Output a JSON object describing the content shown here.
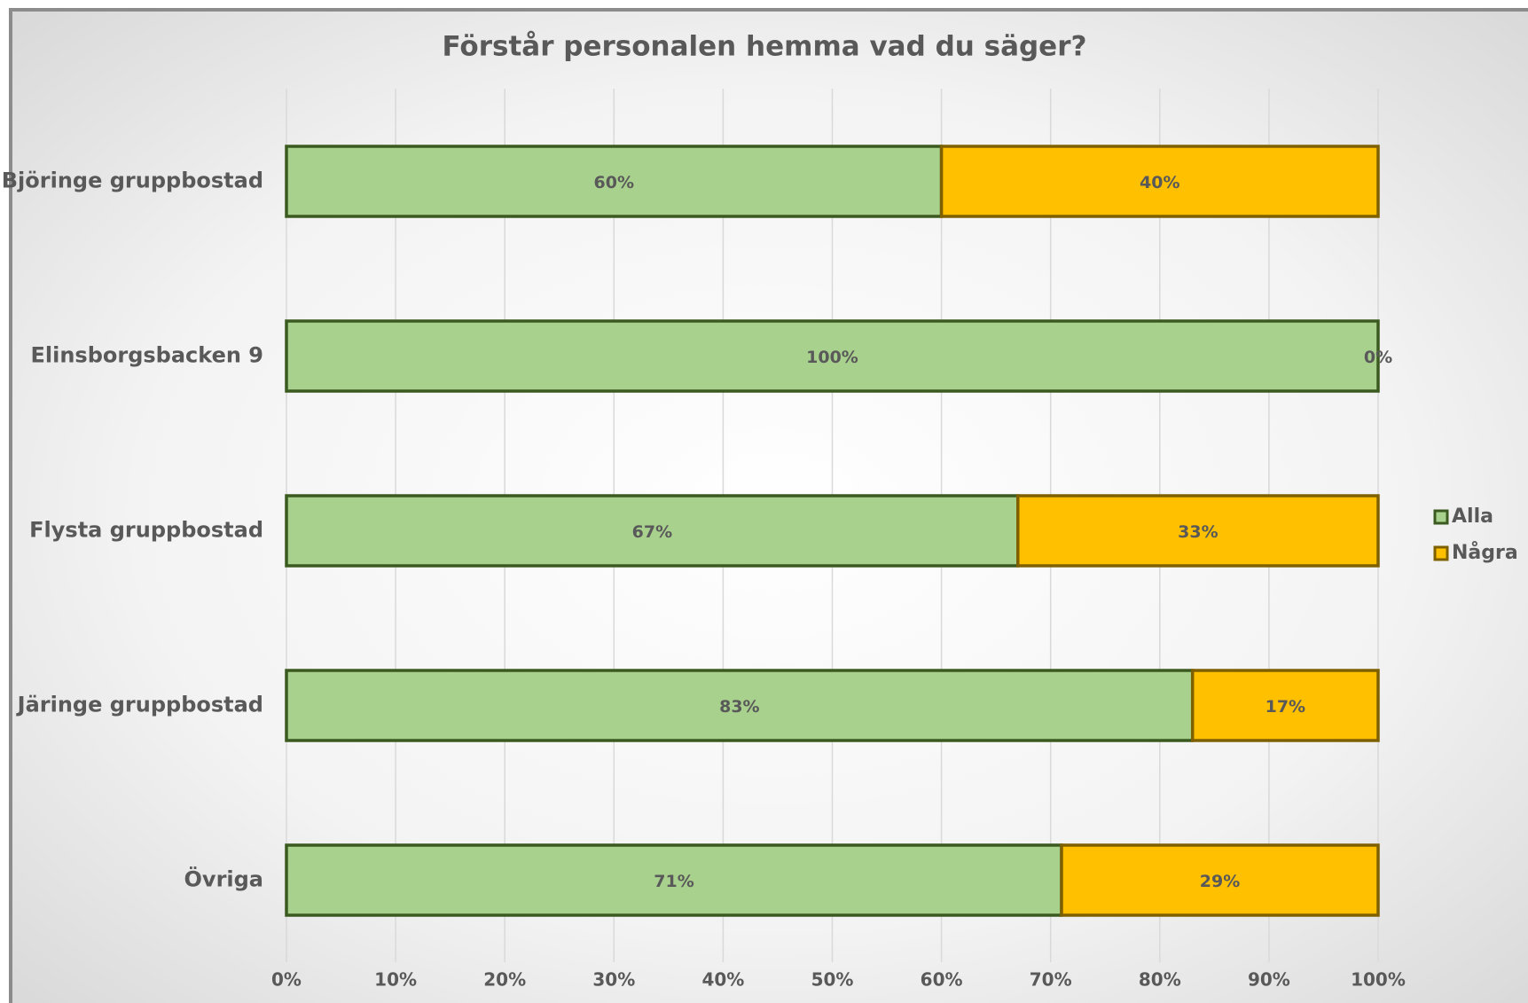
{
  "chart_data": {
    "type": "stacked-bar-horizontal",
    "title": "Förstår personalen hemma vad du säger?",
    "categories": [
      "Björinge gruppbostad",
      "Elinsborgsbacken 9",
      "Flysta gruppbostad",
      "Järinge gruppbostad",
      "Övriga"
    ],
    "series": [
      {
        "name": "Alla",
        "color": "#a9d18e",
        "edge": "#3b5a1f",
        "values": [
          60,
          100,
          67,
          83,
          71
        ],
        "value_labels": [
          "60%",
          "100%",
          "67%",
          "83%",
          "71%"
        ]
      },
      {
        "name": "Några",
        "color": "#ffc000",
        "edge": "#7f6000",
        "values": [
          40,
          0,
          33,
          17,
          29
        ],
        "value_labels": [
          "40%",
          "0%",
          "33%",
          "17%",
          "29%"
        ]
      }
    ],
    "xlim": [
      0,
      100
    ],
    "xticks": [
      {
        "value": 0,
        "label": "0%"
      },
      {
        "value": 10,
        "label": "10%"
      },
      {
        "value": 20,
        "label": "20%"
      },
      {
        "value": 30,
        "label": "30%"
      },
      {
        "value": 40,
        "label": "40%"
      },
      {
        "value": 50,
        "label": "50%"
      },
      {
        "value": 60,
        "label": "60%"
      },
      {
        "value": 70,
        "label": "70%"
      },
      {
        "value": 80,
        "label": "80%"
      },
      {
        "value": 90,
        "label": "90%"
      },
      {
        "value": 100,
        "label": "100%"
      }
    ],
    "grid": true,
    "legend": "right"
  }
}
